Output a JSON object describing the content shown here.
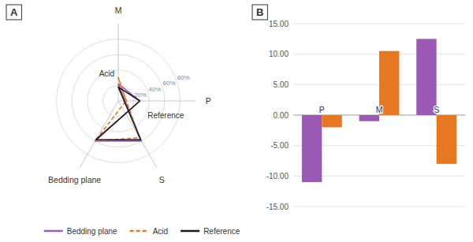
{
  "chart_data": [
    {
      "type": "radar",
      "title": "A",
      "categories": [
        "M",
        "P",
        "Bedding plane",
        "S"
      ],
      "series": [
        {
          "name": "Bedding plane",
          "color": "#9b59b6",
          "line_style": "solid",
          "values": [
            0.22,
            0.28,
            0.6,
            0.6
          ]
        },
        {
          "name": "Acid",
          "color": "#e87722",
          "line_style": "dashed",
          "values": [
            0.3,
            0.1,
            0.6,
            0.55
          ]
        },
        {
          "name": "Reference",
          "color": "#1a1a1a",
          "line_style": "solid",
          "values": [
            0.18,
            0.28,
            0.58,
            0.58
          ]
        }
      ],
      "ylim": [
        0,
        1.0
      ],
      "yticks": [
        {
          "value": 0.2,
          "label": "20%"
        },
        {
          "value": 0.4,
          "label": "40%"
        },
        {
          "value": 0.6,
          "label": "60%"
        },
        {
          "value": 0.8,
          "label": "80%"
        }
      ],
      "grid": true,
      "annotations": [
        "Acid",
        "Reference"
      ],
      "legend": "bottom"
    },
    {
      "type": "bar",
      "title": "B",
      "categories": [
        "P",
        "M",
        "S"
      ],
      "series": [
        {
          "name": "Bedding plane",
          "color": "#9b59b6",
          "values": [
            -11.0,
            -1.0,
            12.5
          ]
        },
        {
          "name": "Acid",
          "color": "#e87722",
          "values": [
            -2.0,
            10.5,
            -8.0
          ]
        }
      ],
      "ylim": [
        -15,
        15
      ],
      "yticks": [
        {
          "value": -15,
          "label": "-15.00"
        },
        {
          "value": -10,
          "label": "-10.00"
        },
        {
          "value": -5,
          "label": "-5.00"
        },
        {
          "value": 0,
          "label": "0.00"
        },
        {
          "value": 5,
          "label": "5.00"
        },
        {
          "value": 10,
          "label": "10.00"
        },
        {
          "value": 15,
          "label": "15.00"
        }
      ],
      "grid": true
    }
  ]
}
